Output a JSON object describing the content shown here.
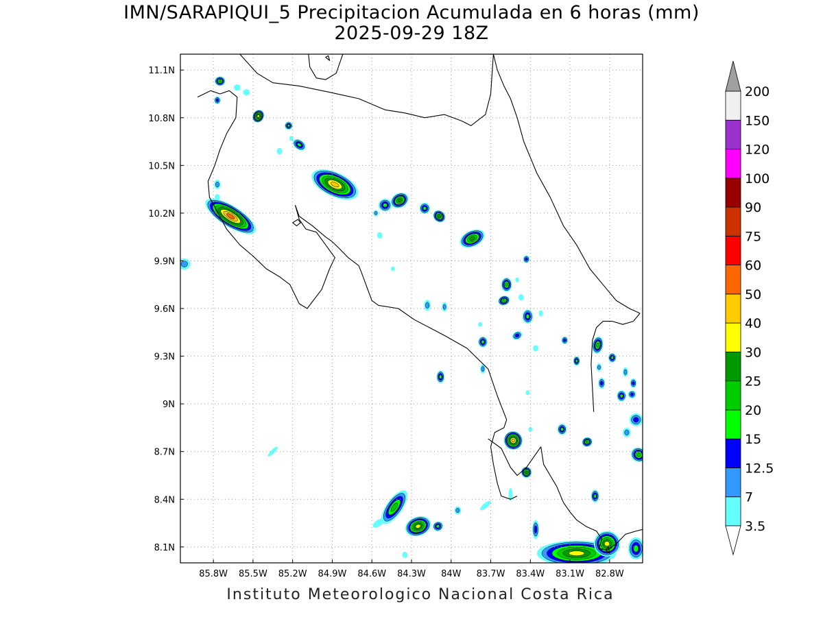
{
  "title_line1": "IMN/SARAPIQUI_5 Precipitacion Acumulada en 6 horas (mm)",
  "title_line2": "2025-09-29 18Z",
  "footer": "Instituto Meteorologico Nacional Costa Rica",
  "map_extent": {
    "lon_min": -86.05,
    "lon_max": -82.55,
    "lat_min": 8.0,
    "lat_max": 11.2
  },
  "lon_ticks": [
    {
      "value": -85.8,
      "label": "85.8W"
    },
    {
      "value": -85.5,
      "label": "85.5W"
    },
    {
      "value": -85.2,
      "label": "85.2W"
    },
    {
      "value": -84.9,
      "label": "84.9W"
    },
    {
      "value": -84.6,
      "label": "84.6W"
    },
    {
      "value": -84.3,
      "label": "84.3W"
    },
    {
      "value": -84.0,
      "label": "84W"
    },
    {
      "value": -83.7,
      "label": "83.7W"
    },
    {
      "value": -83.4,
      "label": "83.4W"
    },
    {
      "value": -83.1,
      "label": "83.1W"
    },
    {
      "value": -82.8,
      "label": "82.8W"
    }
  ],
  "lat_ticks": [
    {
      "value": 11.1,
      "label": "11.1N"
    },
    {
      "value": 10.8,
      "label": "10.8N"
    },
    {
      "value": 10.5,
      "label": "10.5N"
    },
    {
      "value": 10.2,
      "label": "10.2N"
    },
    {
      "value": 9.9,
      "label": "9.9N"
    },
    {
      "value": 9.6,
      "label": "9.6N"
    },
    {
      "value": 9.3,
      "label": "9.3N"
    },
    {
      "value": 9.0,
      "label": "9N"
    },
    {
      "value": 8.7,
      "label": "8.7N"
    },
    {
      "value": 8.4,
      "label": "8.4N"
    },
    {
      "value": 8.1,
      "label": "8.1N"
    }
  ],
  "colorbar": {
    "bottom_color": "#ffffff",
    "top_color": "#a0a0a0",
    "bins": [
      {
        "color": "#66ffff"
      },
      {
        "color": "#3399ff"
      },
      {
        "color": "#0000ff"
      },
      {
        "color": "#00ff00"
      },
      {
        "color": "#00cc00"
      },
      {
        "color": "#009900"
      },
      {
        "color": "#ffff00"
      },
      {
        "color": "#ffcc00"
      },
      {
        "color": "#ff6600"
      },
      {
        "color": "#ff0000"
      },
      {
        "color": "#cc3300"
      },
      {
        "color": "#990000"
      },
      {
        "color": "#ff00ff"
      },
      {
        "color": "#9933cc"
      },
      {
        "color": "#f0f0f0"
      }
    ],
    "labels": [
      "3.5",
      "7",
      "12.5",
      "15",
      "20",
      "25",
      "30",
      "40",
      "50",
      "60",
      "75",
      "90",
      "100",
      "120",
      "150",
      "200"
    ]
  },
  "level_colors": [
    "#66ffff",
    "#3399ff",
    "#0000ff",
    "#00ff00",
    "#00cc00",
    "#009900",
    "#ffff00",
    "#ffcc00",
    "#ff6600",
    "#ff0000"
  ],
  "rain_cells": [
    {
      "lon": -85.75,
      "lat": 11.03,
      "a": 0.04,
      "b": 0.03,
      "ang": 0,
      "max": 5
    },
    {
      "lon": -85.62,
      "lat": 10.99,
      "a": 0.025,
      "b": 0.02,
      "ang": 0,
      "max": 1
    },
    {
      "lon": -85.55,
      "lat": 10.96,
      "a": 0.025,
      "b": 0.02,
      "ang": 0,
      "max": 1
    },
    {
      "lon": -85.77,
      "lat": 10.91,
      "a": 0.025,
      "b": 0.025,
      "ang": 0,
      "max": 3
    },
    {
      "lon": -85.46,
      "lat": 10.81,
      "a": 0.05,
      "b": 0.035,
      "ang": -60,
      "max": 7
    },
    {
      "lon": -85.23,
      "lat": 10.75,
      "a": 0.03,
      "b": 0.025,
      "ang": 0,
      "max": 4
    },
    {
      "lon": -85.15,
      "lat": 10.63,
      "a": 0.055,
      "b": 0.03,
      "ang": 35,
      "max": 4
    },
    {
      "lon": -85.3,
      "lat": 10.59,
      "a": 0.02,
      "b": 0.02,
      "ang": 0,
      "max": 1
    },
    {
      "lon": -85.21,
      "lat": 10.67,
      "a": 0.015,
      "b": 0.015,
      "ang": 0,
      "max": 1
    },
    {
      "lon": -84.88,
      "lat": 10.38,
      "a": 0.19,
      "b": 0.075,
      "ang": 25,
      "max": 8
    },
    {
      "lon": -84.5,
      "lat": 10.25,
      "a": 0.05,
      "b": 0.04,
      "ang": 0,
      "max": 4
    },
    {
      "lon": -84.39,
      "lat": 10.28,
      "a": 0.07,
      "b": 0.045,
      "ang": -30,
      "max": 6
    },
    {
      "lon": -84.57,
      "lat": 10.2,
      "a": 0.02,
      "b": 0.02,
      "ang": 0,
      "max": 2
    },
    {
      "lon": -84.54,
      "lat": 10.06,
      "a": 0.02,
      "b": 0.02,
      "ang": 0,
      "max": 1
    },
    {
      "lon": -84.2,
      "lat": 10.23,
      "a": 0.04,
      "b": 0.035,
      "ang": 0,
      "max": 4
    },
    {
      "lon": -84.09,
      "lat": 10.18,
      "a": 0.05,
      "b": 0.035,
      "ang": 45,
      "max": 6
    },
    {
      "lon": -83.84,
      "lat": 10.04,
      "a": 0.1,
      "b": 0.05,
      "ang": -25,
      "max": 6
    },
    {
      "lon": -85.67,
      "lat": 10.18,
      "a": 0.22,
      "b": 0.065,
      "ang": 32,
      "max": 9
    },
    {
      "lon": -85.77,
      "lat": 10.38,
      "a": 0.025,
      "b": 0.03,
      "ang": 0,
      "max": 2
    },
    {
      "lon": -85.77,
      "lat": 10.3,
      "a": 0.02,
      "b": 0.02,
      "ang": 0,
      "max": 1
    },
    {
      "lon": -86.02,
      "lat": 9.88,
      "a": 0.045,
      "b": 0.035,
      "ang": 0,
      "max": 2
    },
    {
      "lon": -84.44,
      "lat": 9.85,
      "a": 0.015,
      "b": 0.015,
      "ang": 0,
      "max": 1
    },
    {
      "lon": -83.43,
      "lat": 9.91,
      "a": 0.025,
      "b": 0.025,
      "ang": 0,
      "max": 3
    },
    {
      "lon": -83.58,
      "lat": 9.75,
      "a": 0.04,
      "b": 0.045,
      "ang": 0,
      "max": 5
    },
    {
      "lon": -83.6,
      "lat": 9.65,
      "a": 0.045,
      "b": 0.03,
      "ang": -20,
      "max": 5
    },
    {
      "lon": -83.47,
      "lat": 9.67,
      "a": 0.02,
      "b": 0.02,
      "ang": 0,
      "max": 1
    },
    {
      "lon": -83.5,
      "lat": 9.78,
      "a": 0.015,
      "b": 0.015,
      "ang": 0,
      "max": 1
    },
    {
      "lon": -83.32,
      "lat": 9.57,
      "a": 0.015,
      "b": 0.02,
      "ang": 0,
      "max": 1
    },
    {
      "lon": -83.42,
      "lat": 9.55,
      "a": 0.04,
      "b": 0.045,
      "ang": 0,
      "max": 4
    },
    {
      "lon": -83.5,
      "lat": 9.43,
      "a": 0.04,
      "b": 0.025,
      "ang": -30,
      "max": 3
    },
    {
      "lon": -83.36,
      "lat": 9.35,
      "a": 0.02,
      "b": 0.02,
      "ang": 0,
      "max": 1
    },
    {
      "lon": -83.76,
      "lat": 9.39,
      "a": 0.035,
      "b": 0.035,
      "ang": 0,
      "max": 4
    },
    {
      "lon": -83.78,
      "lat": 9.5,
      "a": 0.015,
      "b": 0.015,
      "ang": 0,
      "max": 1
    },
    {
      "lon": -84.05,
      "lat": 9.61,
      "a": 0.02,
      "b": 0.03,
      "ang": 0,
      "max": 2
    },
    {
      "lon": -84.18,
      "lat": 9.62,
      "a": 0.025,
      "b": 0.035,
      "ang": 0,
      "max": 2
    },
    {
      "lon": -83.14,
      "lat": 9.4,
      "a": 0.025,
      "b": 0.025,
      "ang": 0,
      "max": 3
    },
    {
      "lon": -83.05,
      "lat": 9.27,
      "a": 0.025,
      "b": 0.03,
      "ang": 0,
      "max": 4
    },
    {
      "lon": -82.89,
      "lat": 9.37,
      "a": 0.04,
      "b": 0.055,
      "ang": 10,
      "max": 5
    },
    {
      "lon": -82.78,
      "lat": 9.29,
      "a": 0.03,
      "b": 0.03,
      "ang": 0,
      "max": 4
    },
    {
      "lon": -82.88,
      "lat": 9.23,
      "a": 0.02,
      "b": 0.025,
      "ang": 0,
      "max": 2
    },
    {
      "lon": -82.86,
      "lat": 9.13,
      "a": 0.025,
      "b": 0.035,
      "ang": 0,
      "max": 3
    },
    {
      "lon": -82.68,
      "lat": 9.2,
      "a": 0.02,
      "b": 0.03,
      "ang": 0,
      "max": 2
    },
    {
      "lon": -82.62,
      "lat": 9.13,
      "a": 0.025,
      "b": 0.03,
      "ang": 0,
      "max": 3
    },
    {
      "lon": -82.71,
      "lat": 9.05,
      "a": 0.035,
      "b": 0.035,
      "ang": 0,
      "max": 4
    },
    {
      "lon": -82.63,
      "lat": 9.06,
      "a": 0.03,
      "b": 0.025,
      "ang": 0,
      "max": 3
    },
    {
      "lon": -84.08,
      "lat": 9.17,
      "a": 0.03,
      "b": 0.04,
      "ang": 0,
      "max": 4
    },
    {
      "lon": -83.76,
      "lat": 9.22,
      "a": 0.02,
      "b": 0.03,
      "ang": 0,
      "max": 2
    },
    {
      "lon": -83.42,
      "lat": 9.07,
      "a": 0.015,
      "b": 0.015,
      "ang": 0,
      "max": 1
    },
    {
      "lon": -83.53,
      "lat": 8.77,
      "a": 0.07,
      "b": 0.06,
      "ang": -30,
      "max": 8
    },
    {
      "lon": -83.4,
      "lat": 8.84,
      "a": 0.015,
      "b": 0.015,
      "ang": 0,
      "max": 1
    },
    {
      "lon": -83.43,
      "lat": 8.57,
      "a": 0.04,
      "b": 0.035,
      "ang": 0,
      "max": 6
    },
    {
      "lon": -83.16,
      "lat": 8.84,
      "a": 0.035,
      "b": 0.035,
      "ang": 0,
      "max": 4
    },
    {
      "lon": -82.97,
      "lat": 8.76,
      "a": 0.04,
      "b": 0.03,
      "ang": -20,
      "max": 5
    },
    {
      "lon": -82.6,
      "lat": 8.9,
      "a": 0.05,
      "b": 0.04,
      "ang": 0,
      "max": 3
    },
    {
      "lon": -82.58,
      "lat": 8.68,
      "a": 0.06,
      "b": 0.045,
      "ang": 30,
      "max": 5
    },
    {
      "lon": -82.67,
      "lat": 8.82,
      "a": 0.03,
      "b": 0.03,
      "ang": 0,
      "max": 2
    },
    {
      "lon": -82.91,
      "lat": 8.42,
      "a": 0.03,
      "b": 0.04,
      "ang": 0,
      "max": 4
    },
    {
      "lon": -83.36,
      "lat": 8.21,
      "a": 0.025,
      "b": 0.06,
      "ang": 0,
      "max": 3
    },
    {
      "lon": -83.55,
      "lat": 8.43,
      "a": 0.015,
      "b": 0.04,
      "ang": 0,
      "max": 1
    },
    {
      "lon": -84.43,
      "lat": 8.35,
      "a": 0.15,
      "b": 0.05,
      "ang": -55,
      "max": 5
    },
    {
      "lon": -84.25,
      "lat": 8.23,
      "a": 0.1,
      "b": 0.06,
      "ang": -20,
      "max": 7
    },
    {
      "lon": -84.1,
      "lat": 8.23,
      "a": 0.04,
      "b": 0.03,
      "ang": -30,
      "max": 4
    },
    {
      "lon": -83.95,
      "lat": 8.33,
      "a": 0.025,
      "b": 0.025,
      "ang": 0,
      "max": 2
    },
    {
      "lon": -84.55,
      "lat": 8.25,
      "a": 0.05,
      "b": 0.02,
      "ang": -35,
      "max": 1
    },
    {
      "lon": -85.35,
      "lat": 8.7,
      "a": 0.05,
      "b": 0.012,
      "ang": -45,
      "max": 1
    },
    {
      "lon": -83.74,
      "lat": 8.36,
      "a": 0.05,
      "b": 0.015,
      "ang": -40,
      "max": 1
    },
    {
      "lon": -84.35,
      "lat": 8.05,
      "a": 0.02,
      "b": 0.02,
      "ang": 0,
      "max": 1
    },
    {
      "lon": -83.05,
      "lat": 8.06,
      "a": 0.3,
      "b": 0.08,
      "ang": 0,
      "max": 7
    },
    {
      "lon": -82.82,
      "lat": 8.12,
      "a": 0.1,
      "b": 0.08,
      "ang": 0,
      "max": 7
    },
    {
      "lon": -82.6,
      "lat": 8.09,
      "a": 0.06,
      "b": 0.07,
      "ang": 0,
      "max": 4
    }
  ],
  "coastlines": [
    [
      [
        -85.6,
        11.2
      ],
      [
        -85.47,
        11.08
      ],
      [
        -85.35,
        11.02
      ],
      [
        -85.15,
        11.0
      ],
      [
        -84.92,
        10.96
      ],
      [
        -84.7,
        10.92
      ],
      [
        -84.5,
        10.85
      ],
      [
        -84.35,
        10.83
      ],
      [
        -84.2,
        10.8
      ],
      [
        -84.05,
        10.82
      ],
      [
        -83.92,
        10.78
      ],
      [
        -83.85,
        10.75
      ],
      [
        -83.74,
        10.82
      ],
      [
        -83.7,
        10.95
      ],
      [
        -83.68,
        11.2
      ]
    ],
    [
      [
        -85.08,
        11.2
      ],
      [
        -85.07,
        11.12
      ],
      [
        -85.02,
        11.05
      ],
      [
        -84.95,
        11.04
      ],
      [
        -84.87,
        11.08
      ],
      [
        -84.82,
        11.2
      ]
    ],
    [
      [
        -85.92,
        10.93
      ],
      [
        -85.82,
        10.97
      ],
      [
        -85.75,
        10.95
      ],
      [
        -85.68,
        10.97
      ],
      [
        -85.62,
        10.93
      ],
      [
        -85.63,
        10.8
      ],
      [
        -85.7,
        10.7
      ],
      [
        -85.75,
        10.6
      ],
      [
        -85.79,
        10.5
      ],
      [
        -85.84,
        10.4
      ],
      [
        -85.83,
        10.3
      ],
      [
        -85.79,
        10.24
      ],
      [
        -85.7,
        10.1
      ],
      [
        -85.6,
        10.0
      ],
      [
        -85.5,
        9.93
      ],
      [
        -85.4,
        9.85
      ],
      [
        -85.3,
        9.8
      ],
      [
        -85.22,
        9.75
      ],
      [
        -85.15,
        9.63
      ],
      [
        -85.09,
        9.6
      ],
      [
        -84.98,
        9.72
      ],
      [
        -84.92,
        9.85
      ],
      [
        -84.88,
        9.92
      ],
      [
        -84.95,
        10.0
      ],
      [
        -85.02,
        10.08
      ],
      [
        -85.1,
        10.1
      ],
      [
        -85.15,
        10.16
      ],
      [
        -85.18,
        10.25
      ]
    ],
    [
      [
        -84.68,
        9.83
      ],
      [
        -84.6,
        9.65
      ],
      [
        -84.55,
        9.62
      ],
      [
        -84.4,
        9.6
      ],
      [
        -84.28,
        9.53
      ],
      [
        -84.05,
        9.43
      ],
      [
        -83.88,
        9.35
      ],
      [
        -83.72,
        9.22
      ],
      [
        -83.65,
        9.05
      ],
      [
        -83.58,
        8.9
      ],
      [
        -83.6,
        8.85
      ],
      [
        -83.67,
        8.82
      ],
      [
        -83.7,
        8.73
      ],
      [
        -83.68,
        8.62
      ],
      [
        -83.65,
        8.5
      ],
      [
        -83.62,
        8.42
      ],
      [
        -83.55,
        8.4
      ],
      [
        -83.5,
        8.42
      ]
    ],
    [
      [
        -83.32,
        8.73
      ],
      [
        -83.3,
        8.62
      ],
      [
        -83.25,
        8.55
      ],
      [
        -83.2,
        8.48
      ],
      [
        -83.15,
        8.38
      ],
      [
        -83.1,
        8.32
      ],
      [
        -83.05,
        8.27
      ],
      [
        -82.98,
        8.23
      ],
      [
        -82.9,
        8.2
      ],
      [
        -82.86,
        8.15
      ],
      [
        -82.88,
        8.09
      ],
      [
        -82.82,
        8.08
      ],
      [
        -82.75,
        8.12
      ],
      [
        -82.68,
        8.18
      ],
      [
        -82.6,
        8.2
      ],
      [
        -82.55,
        8.21
      ]
    ],
    [
      [
        -83.68,
        11.2
      ],
      [
        -83.65,
        11.1
      ],
      [
        -83.6,
        11.0
      ],
      [
        -83.55,
        10.92
      ],
      [
        -83.5,
        10.8
      ],
      [
        -83.45,
        10.65
      ],
      [
        -83.35,
        10.45
      ],
      [
        -83.25,
        10.3
      ],
      [
        -83.15,
        10.12
      ],
      [
        -83.05,
        10.0
      ],
      [
        -82.95,
        9.85
      ],
      [
        -82.85,
        9.75
      ],
      [
        -82.75,
        9.65
      ],
      [
        -82.65,
        9.6
      ],
      [
        -82.57,
        9.57
      ]
    ],
    [
      [
        -82.57,
        9.57
      ],
      [
        -82.62,
        9.52
      ],
      [
        -82.7,
        9.5
      ],
      [
        -82.78,
        9.52
      ],
      [
        -82.85,
        9.52
      ],
      [
        -82.9,
        9.48
      ],
      [
        -82.93,
        9.4
      ],
      [
        -82.94,
        9.25
      ],
      [
        -82.93,
        9.1
      ],
      [
        -82.92,
        8.95
      ]
    ]
  ],
  "bay_lines": [
    [
      [
        -85.18,
        10.25
      ],
      [
        -85.15,
        10.18
      ],
      [
        -85.05,
        10.12
      ],
      [
        -84.95,
        10.05
      ],
      [
        -84.9,
        10.02
      ],
      [
        -84.85,
        9.98
      ],
      [
        -84.78,
        9.92
      ],
      [
        -84.7,
        9.87
      ],
      [
        -84.68,
        9.83
      ]
    ],
    [
      [
        -83.72,
        8.78
      ],
      [
        -83.62,
        8.72
      ],
      [
        -83.55,
        8.6
      ],
      [
        -83.5,
        8.55
      ],
      [
        -83.43,
        8.6
      ],
      [
        -83.32,
        8.73
      ]
    ]
  ],
  "islands": [
    [
      [
        -85.2,
        10.14
      ],
      [
        -85.17,
        10.12
      ],
      [
        -85.14,
        10.14
      ],
      [
        -85.16,
        10.16
      ]
    ],
    [
      [
        -84.95,
        11.18
      ],
      [
        -84.92,
        11.16
      ],
      [
        -84.93,
        11.19
      ]
    ],
    [
      [
        -82.83,
        8.08
      ],
      [
        -82.8,
        8.06
      ],
      [
        -82.81,
        8.1
      ]
    ]
  ]
}
